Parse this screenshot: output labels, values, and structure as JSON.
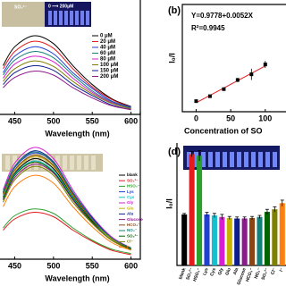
{
  "chart_data": [
    {
      "type": "line",
      "x_label": "Wavelength (nm)",
      "inset_labels": [
        "SO₃²⁻",
        "0 ⟶ 200μM"
      ],
      "x": [
        435,
        450,
        475,
        500,
        525,
        550,
        575,
        600
      ],
      "xlim": [
        431,
        612
      ],
      "xticks": [
        450,
        500,
        550,
        600
      ],
      "ylim": [
        0,
        100
      ],
      "series": [
        {
          "name": "0 μM",
          "color": "#000000",
          "values": [
            62,
            86,
            100,
            90,
            62,
            38,
            20,
            10
          ]
        },
        {
          "name": "20 μM",
          "color": "#e41a1c",
          "values": [
            58,
            80,
            93,
            84,
            58,
            35,
            19,
            9
          ]
        },
        {
          "name": "40 μM",
          "color": "#1f3fd6",
          "values": [
            53,
            74,
            86,
            77,
            53,
            33,
            17,
            9
          ]
        },
        {
          "name": "60 μM",
          "color": "#14807a",
          "values": [
            50,
            69,
            80,
            72,
            50,
            30,
            16,
            8
          ]
        },
        {
          "name": "80 μM",
          "color": "#d61fd0",
          "values": [
            46,
            64,
            74,
            67,
            46,
            28,
            15,
            7
          ]
        },
        {
          "name": "100 μM",
          "color": "#7f7f00",
          "values": [
            42,
            58,
            68,
            61,
            42,
            26,
            14,
            7
          ]
        },
        {
          "name": "150 μM",
          "color": "#0d1f8f",
          "values": [
            38,
            53,
            62,
            56,
            38,
            24,
            12,
            6
          ]
        },
        {
          "name": "200 μM",
          "color": "#8b1a8b",
          "values": [
            34,
            47,
            55,
            50,
            34,
            21,
            11,
            6
          ]
        }
      ]
    },
    {
      "type": "scatter",
      "panel_label": "(b)",
      "y_label": "I₀/I",
      "x_label": "Concentration of SO",
      "equation": "Y=0.9778+0.0052X",
      "r_squared": "R²=0.9945",
      "fit": {
        "intercept": 0.9778,
        "slope": 0.0052
      },
      "x": [
        0,
        20,
        40,
        60,
        80,
        100
      ],
      "values": [
        1.0,
        1.07,
        1.17,
        1.3,
        1.38,
        1.52
      ],
      "errors": [
        0.01,
        0.02,
        0.02,
        0.03,
        0.08,
        0.05
      ],
      "xlim": [
        -20,
        130
      ],
      "xticks": [
        0,
        50,
        100
      ],
      "ylim": [
        0.85,
        2.37
      ],
      "color": "#000000",
      "fit_color": "#e41a1c"
    },
    {
      "type": "line",
      "x_label": "Wavelength (nm)",
      "x": [
        435,
        450,
        475,
        500,
        525,
        550,
        575,
        600
      ],
      "xlim": [
        431,
        612
      ],
      "xticks": [
        450,
        500,
        550,
        600
      ],
      "ylim": [
        0,
        100
      ],
      "series": [
        {
          "name": "blank",
          "color": "#000000",
          "values": [
            56,
            77,
            90,
            81,
            56,
            34,
            18,
            9
          ]
        },
        {
          "name": "SO₃²⁻",
          "color": "#e41a1c",
          "values": [
            26,
            36,
            42,
            38,
            26,
            16,
            8,
            4
          ]
        },
        {
          "name": "HSO₃⁻",
          "color": "#2ca02c",
          "values": [
            28,
            39,
            45,
            41,
            28,
            17,
            9,
            5
          ]
        },
        {
          "name": "Lys",
          "color": "#1f3fd6",
          "values": [
            59,
            82,
            95,
            86,
            59,
            36,
            19,
            10
          ]
        },
        {
          "name": "Cys",
          "color": "#17becf",
          "values": [
            55,
            76,
            88,
            79,
            55,
            33,
            18,
            9
          ]
        },
        {
          "name": "Gly",
          "color": "#d61fd0",
          "values": [
            62,
            86,
            100,
            90,
            62,
            38,
            20,
            10
          ]
        },
        {
          "name": "Glu",
          "color": "#c8b400",
          "values": [
            57,
            79,
            92,
            83,
            57,
            35,
            18,
            9
          ]
        },
        {
          "name": "Ala",
          "color": "#0d1f8f",
          "values": [
            60,
            83,
            97,
            87,
            60,
            37,
            19,
            10
          ]
        },
        {
          "name": "Glucose",
          "color": "#8b1a8b",
          "values": [
            53,
            73,
            85,
            77,
            53,
            32,
            17,
            9
          ]
        },
        {
          "name": "HCO₃⁻",
          "color": "#8b4513",
          "values": [
            58,
            80,
            93,
            84,
            58,
            35,
            19,
            9
          ]
        },
        {
          "name": "NO₃⁻",
          "color": "#14807a",
          "values": [
            60,
            83,
            96,
            86,
            60,
            36,
            19,
            10
          ]
        },
        {
          "name": "SO₄²⁻",
          "color": "#006400",
          "values": [
            54,
            75,
            87,
            78,
            54,
            33,
            17,
            9
          ]
        },
        {
          "name": "Cl⁻",
          "color": "#7f7f00",
          "values": [
            51,
            71,
            83,
            75,
            51,
            32,
            17,
            8
          ]
        },
        {
          "name": "I⁻",
          "color": "#ff7f0e",
          "values": [
            47,
            65,
            75,
            68,
            47,
            29,
            15,
            8
          ]
        }
      ]
    },
    {
      "type": "bar",
      "panel_label": "(d)",
      "y_label": "I₀/I",
      "categories": [
        "blank",
        "SO₃²⁻",
        "HSO₃⁻",
        "Lys",
        "Cys",
        "Gly",
        "Glu",
        "Ala",
        "Glucose",
        "HCO₃⁻",
        "NO₃⁻",
        "SO₄²⁻",
        "Cl⁻",
        "I⁻"
      ],
      "values": [
        1.0,
        2.18,
        2.15,
        1.0,
        0.98,
        0.95,
        0.93,
        0.92,
        0.92,
        0.93,
        0.95,
        1.05,
        1.1,
        1.22
      ],
      "errors": [
        0.02,
        0.05,
        0.1,
        0.04,
        0.04,
        0.05,
        0.03,
        0.03,
        0.03,
        0.03,
        0.03,
        0.05,
        0.05,
        0.06
      ],
      "colors": [
        "#000000",
        "#e41a1c",
        "#2ca02c",
        "#1f3fd6",
        "#17becf",
        "#d61fd0",
        "#c8b400",
        "#0d1f8f",
        "#8b1a8b",
        "#8b4513",
        "#14807a",
        "#006400",
        "#7f7f00",
        "#ff7f0e"
      ],
      "ylim": [
        0,
        2.4
      ]
    }
  ]
}
